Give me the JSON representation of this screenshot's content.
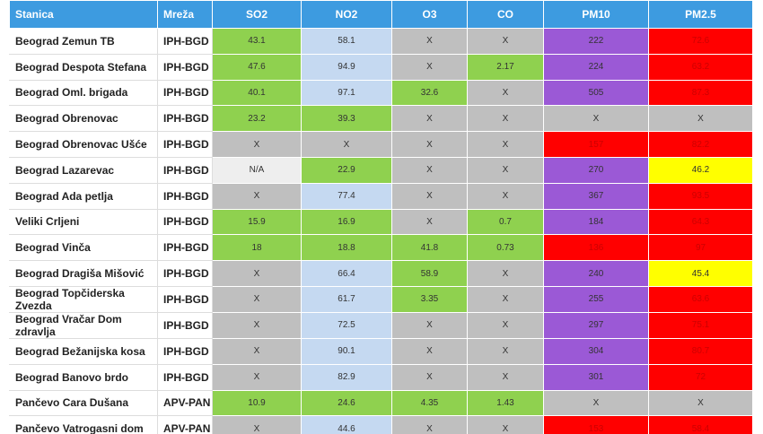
{
  "table": {
    "header": [
      "Stanica",
      "Mreža",
      "SO2",
      "NO2",
      "O3",
      "CO",
      "PM10",
      "PM2.5"
    ],
    "rows": [
      [
        "Beograd Zemun TB",
        "IPH-BGD",
        43.1,
        58.1,
        "X",
        "X",
        222,
        72.6
      ],
      [
        "Beograd Despota Stefana",
        "IPH-BGD",
        47.6,
        94.9,
        "X",
        2.17,
        224,
        63.2
      ],
      [
        "Beograd Oml. brigada",
        "IPH-BGD",
        40.1,
        97.1,
        32.6,
        "X",
        505,
        87.3
      ],
      [
        "Beograd Obrenovac",
        "IPH-BGD",
        23.2,
        39.3,
        "X",
        "X",
        "X",
        "X"
      ],
      [
        "Beograd Obrenovac Ušće",
        "IPH-BGD",
        "X",
        "X",
        "X",
        "X",
        157,
        82.2
      ],
      [
        "Beograd Lazarevac",
        "IPH-BGD",
        "N/A",
        22.9,
        "X",
        "X",
        270,
        46.2
      ],
      [
        "Beograd Ada petlja",
        "IPH-BGD",
        "X",
        77.4,
        "X",
        "X",
        367,
        93.5
      ],
      [
        "Veliki Crljeni",
        "IPH-BGD",
        15.9,
        16.9,
        "X",
        0.7,
        184,
        64.3
      ],
      [
        "Beograd Vinča",
        "IPH-BGD",
        18,
        18.8,
        41.8,
        0.73,
        136,
        97
      ],
      [
        "Beograd Dragiša Mišović",
        "IPH-BGD",
        "X",
        66.4,
        58.9,
        "X",
        240,
        45.4
      ],
      [
        "Beograd Topčiderska Zvezda",
        "IPH-BGD",
        "X",
        61.7,
        3.35,
        "X",
        255,
        63.6
      ],
      [
        "Beograd Vračar Dom zdravlja",
        "IPH-BGD",
        "X",
        72.5,
        "X",
        "X",
        297,
        75.1
      ],
      [
        "Beograd Bežanijska kosa",
        "IPH-BGD",
        "X",
        90.1,
        "X",
        "X",
        304,
        80.7
      ],
      [
        "Beograd Banovo brdo",
        "IPH-BGD",
        "X",
        82.9,
        "X",
        "X",
        301,
        72
      ],
      [
        "Pančevo Cara Dušana",
        "APV-PAN",
        10.9,
        24.6,
        4.35,
        1.43,
        "X",
        "X"
      ],
      [
        "Pančevo Vatrogasni dom",
        "APV-PAN",
        "X",
        44.6,
        "X",
        "X",
        153,
        58.4
      ]
    ]
  }
}
